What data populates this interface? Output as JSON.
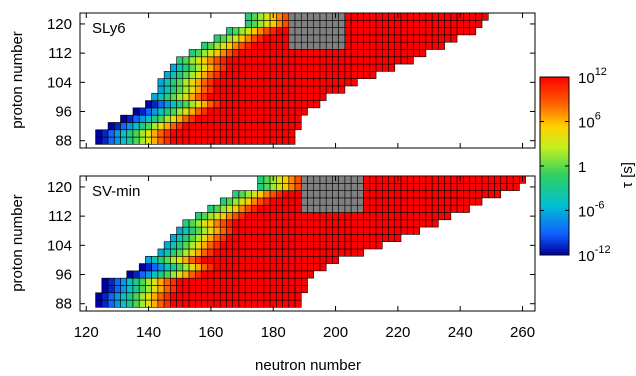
{
  "chart_data": [
    {
      "type": "heatmap",
      "panel_label": "SLy6",
      "ylabel": "proton number",
      "y_ticks": [
        "120",
        "112",
        "104",
        "96",
        "88"
      ],
      "ylim": [
        86,
        123
      ],
      "xlim": [
        118,
        264
      ],
      "grid": false,
      "cell_step": 2,
      "region": {
        "proton_rows": [
          86,
          124
        ],
        "neutron_min_by_proton": [
          [
            86,
            122
          ],
          [
            90,
            124
          ],
          [
            92,
            128
          ],
          [
            96,
            136
          ],
          [
            100,
            142
          ],
          [
            104,
            144
          ],
          [
            110,
            150
          ],
          [
            114,
            158
          ],
          [
            118,
            166
          ],
          [
            120,
            172
          ]
        ],
        "neutron_max_by_proton": [
          [
            86,
            184
          ],
          [
            96,
            190
          ],
          [
            100,
            196
          ],
          [
            104,
            206
          ],
          [
            110,
            224
          ],
          [
            116,
            238
          ],
          [
            118,
            244
          ],
          [
            120,
            246
          ],
          [
            122,
            248
          ]
        ]
      },
      "value_map": "log10 half-life in seconds, low (about -12) for the lightest neutron-deficient nuclei, rising to 10^12 and above for neutron-rich nuclei; gray cells for heaviest proton-rich corner"
    },
    {
      "type": "heatmap",
      "panel_label": "SV-min",
      "ylabel": "proton number",
      "y_ticks": [
        "120",
        "112",
        "104",
        "96",
        "88"
      ],
      "ylim": [
        86,
        123
      ],
      "xlim": [
        118,
        264
      ],
      "grid": false,
      "cell_step": 2,
      "region": {
        "proton_rows": [
          86,
          124
        ],
        "neutron_min_by_proton": [
          [
            86,
            122
          ],
          [
            90,
            124
          ],
          [
            94,
            126
          ],
          [
            96,
            134
          ],
          [
            100,
            140
          ],
          [
            104,
            146
          ],
          [
            110,
            152
          ],
          [
            114,
            160
          ],
          [
            118,
            168
          ],
          [
            120,
            176
          ]
        ],
        "neutron_max_by_proton": [
          [
            86,
            186
          ],
          [
            96,
            192
          ],
          [
            100,
            200
          ],
          [
            104,
            214
          ],
          [
            110,
            232
          ],
          [
            116,
            246
          ],
          [
            118,
            252
          ],
          [
            120,
            258
          ],
          [
            122,
            260
          ]
        ]
      },
      "value_map": "log10 half-life in seconds; same color scale as upper panel"
    }
  ],
  "x_axis": {
    "label": "neutron number",
    "ticks": [
      "120",
      "140",
      "160",
      "180",
      "200",
      "220",
      "240",
      "260"
    ]
  },
  "colorbar": {
    "label": "τ [s]",
    "ticks": [
      {
        "text": "10",
        "exp": "12"
      },
      {
        "text": "10",
        "exp": "6"
      },
      {
        "text": "1",
        "exp": ""
      },
      {
        "text": "10",
        "exp": "-6"
      },
      {
        "text": "10",
        "exp": "-12"
      }
    ],
    "range_log10": [
      -12,
      12
    ]
  },
  "colors": {
    "gray_cell": "#808080",
    "cell_border": "#000000",
    "frame": "#000000"
  }
}
